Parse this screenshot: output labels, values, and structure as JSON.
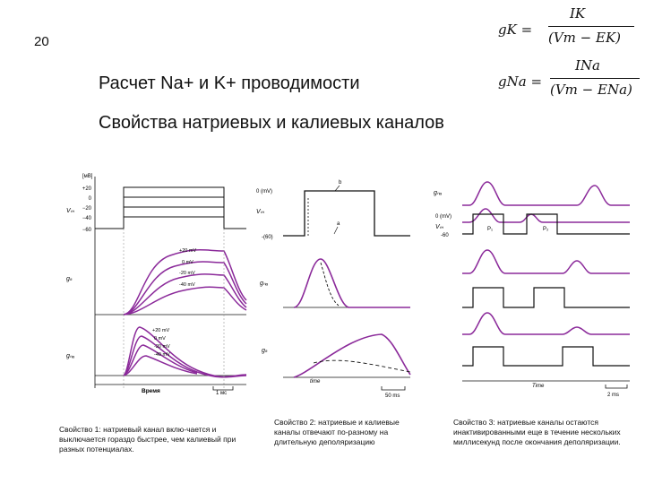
{
  "slide_number": "20",
  "titles": {
    "main": "Расчет Na+ и K+ проводимости",
    "sub": "Свойства натриевых и калиевых каналов"
  },
  "formulas": {
    "gk_lhs": "gK =",
    "gk_num": "IK",
    "gk_den": "(Vm − EK)",
    "gna_lhs": "gNa =",
    "gna_num": "INa",
    "gna_den": "(Vm − ENa)"
  },
  "figure1": {
    "unit": "[мВ]",
    "voltage_ticks": [
      "+20",
      "0",
      "−20",
      "−40",
      "−60"
    ],
    "v_label": "Vₘ",
    "gk_label": "gₖ",
    "gna_label": "gₙₐ",
    "gk_curve_labels": [
      "+20 mV",
      "0 mV",
      "-20 mV",
      "-40 mV"
    ],
    "gna_curve_labels": [
      "+20 mV",
      "0 mV",
      "-20 mV",
      "-40 mV"
    ],
    "time_label": "Время",
    "scale_label": "1 мс"
  },
  "figure2": {
    "vm_label": "Vₘ",
    "top_tick": "0 (mV)",
    "bottom_tick": "-(60)",
    "marker_b": "b",
    "marker_a": "a",
    "gna_label": "gₙₐ",
    "gk_label": "gₖ",
    "time_label": "time",
    "scale_label": "50 ms"
  },
  "figure3": {
    "gna_label": "gₙₐ",
    "vm_label": "Vₘ",
    "tick_0": "0 (mV)",
    "tick_neg": "-60",
    "p1": "P₁",
    "p2": "P₂",
    "time_label": "Time",
    "scale_label": "2 ms"
  },
  "captions": {
    "c1": "Свойство 1: натриевый канал вклю-чается и выключается гораздо быстрее, чем калиевый при разных потенциалах.",
    "c2": "Свойство 2: натриевые и калиевые каналы отвечают по-разному на длительную деполяризацию",
    "c3": "Свойство 3: натриевые каналы остаются инактивированными еще в течение нескольких миллисекунд после окончания деполяризации."
  },
  "colors": {
    "trace": "#8b2a9a",
    "axis": "#111111"
  }
}
